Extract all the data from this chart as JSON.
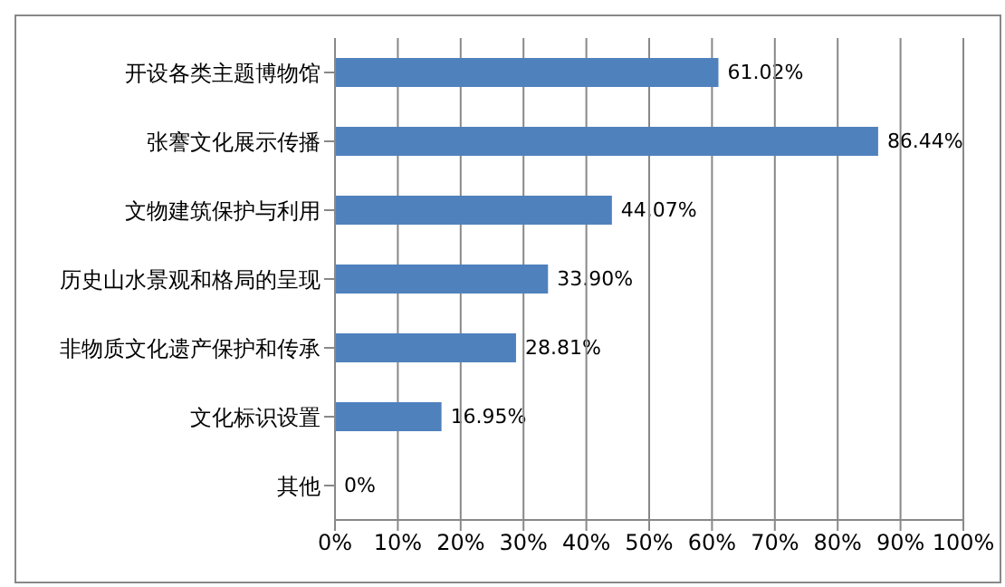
{
  "chart_data": {
    "type": "bar",
    "orientation": "horizontal",
    "categories": [
      "开设各类主题博物馆",
      "张謇文化展示传播",
      "文物建筑保护与利用",
      "历史山水景观和格局的呈现",
      "非物质文化遗产保护和传承",
      "文化标识设置",
      "其他"
    ],
    "values": [
      61.02,
      86.44,
      44.07,
      33.9,
      28.81,
      16.95,
      0
    ],
    "value_labels": [
      "61.02%",
      "86.44%",
      "44.07%",
      "33.90%",
      "28.81%",
      "16.95%",
      "0%"
    ],
    "color": "#4f81bd",
    "xlim": [
      0,
      100
    ],
    "xticks": [
      {
        "value": 0,
        "label": "0%"
      },
      {
        "value": 10,
        "label": "10%"
      },
      {
        "value": 20,
        "label": "20%"
      },
      {
        "value": 30,
        "label": "30%"
      },
      {
        "value": 40,
        "label": "40%"
      },
      {
        "value": 50,
        "label": "50%"
      },
      {
        "value": 60,
        "label": "60%"
      },
      {
        "value": 70,
        "label": "70%"
      },
      {
        "value": 80,
        "label": "80%"
      },
      {
        "value": 90,
        "label": "90%"
      },
      {
        "value": 100,
        "label": "100%"
      }
    ],
    "grid": "x",
    "legend": false
  }
}
